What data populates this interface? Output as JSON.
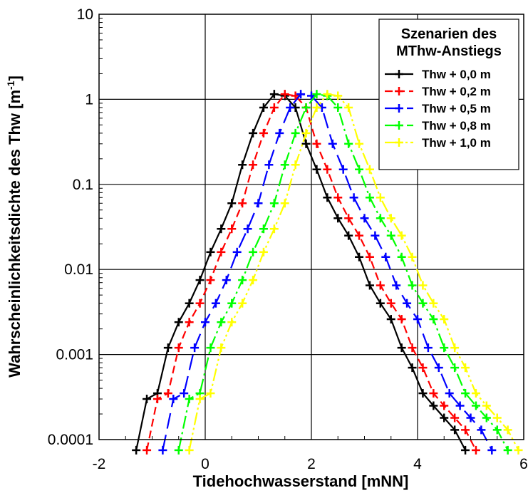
{
  "chart_data": {
    "type": "line",
    "ylog": true,
    "grid": true,
    "legend_position": "top-right",
    "xlabel": "Tidehochwasserstand  [mNN]",
    "ylabel": "Wahrscheinlichkeitsdichte des Thw  [m",
    "ylabel_sup": "-1",
    "ylabel_end": "]",
    "xlim": [
      -2,
      6
    ],
    "ylim": [
      0.0001,
      10
    ],
    "xticks": [
      -2,
      0,
      2,
      4,
      6
    ],
    "xtick_labels": [
      "-2",
      "0",
      "2",
      "4",
      "6"
    ],
    "yticks": [
      0.0001,
      0.001,
      0.01,
      0.1,
      1,
      10
    ],
    "ytick_labels": [
      "0.0001",
      "0.001",
      "0.01",
      "0.1",
      "1",
      "10"
    ],
    "legend_title": [
      "Szenarien des",
      "MThw-Anstiegs"
    ],
    "series": [
      {
        "name": "Thw + 0,0 m",
        "color": "#000000",
        "dash": "",
        "x": [
          -1.3,
          -1.1,
          -0.9,
          -0.7,
          -0.5,
          -0.3,
          -0.1,
          0.1,
          0.3,
          0.5,
          0.7,
          0.9,
          1.1,
          1.3,
          1.5,
          1.7,
          1.9,
          2.1,
          2.3,
          2.5,
          2.7,
          2.9,
          3.1,
          3.3,
          3.5,
          3.7,
          3.9,
          4.1,
          4.3,
          4.5,
          4.7,
          4.9
        ],
        "y": [
          7.5e-05,
          0.0003,
          0.00035,
          0.0012,
          0.0024,
          0.004,
          0.0075,
          0.016,
          0.03,
          0.06,
          0.17,
          0.4,
          0.8,
          1.15,
          1.1,
          0.8,
          0.3,
          0.15,
          0.07,
          0.04,
          0.025,
          0.014,
          0.0065,
          0.004,
          0.0026,
          0.0012,
          0.0007,
          0.00035,
          0.00025,
          0.00018,
          0.00013,
          7.5e-05
        ]
      },
      {
        "name": "Thw + 0,2 m",
        "color": "#ff0000",
        "dash": "11,6",
        "x": [
          -1.1,
          -0.9,
          -0.7,
          -0.5,
          -0.3,
          -0.1,
          0.1,
          0.3,
          0.5,
          0.7,
          0.9,
          1.1,
          1.3,
          1.5,
          1.7,
          1.9,
          2.1,
          2.3,
          2.5,
          2.7,
          2.9,
          3.1,
          3.3,
          3.5,
          3.7,
          3.9,
          4.1,
          4.3,
          4.5,
          4.7,
          4.9,
          5.1
        ],
        "y": [
          7.5e-05,
          0.0003,
          0.00035,
          0.0012,
          0.0024,
          0.004,
          0.0075,
          0.016,
          0.03,
          0.06,
          0.17,
          0.4,
          0.8,
          1.15,
          1.1,
          0.8,
          0.3,
          0.15,
          0.07,
          0.04,
          0.025,
          0.014,
          0.0065,
          0.004,
          0.0026,
          0.0012,
          0.0007,
          0.00035,
          0.00025,
          0.00018,
          0.00013,
          7.5e-05
        ]
      },
      {
        "name": "Thw + 0,5 m",
        "color": "#0000ff",
        "dash": "22,9",
        "x": [
          -0.8,
          -0.6,
          -0.4,
          -0.2,
          0.0,
          0.2,
          0.4,
          0.6,
          0.8,
          1.0,
          1.2,
          1.4,
          1.6,
          1.8,
          2.0,
          2.2,
          2.4,
          2.6,
          2.8,
          3.0,
          3.2,
          3.4,
          3.6,
          3.8,
          4.0,
          4.2,
          4.4,
          4.6,
          4.8,
          5.0,
          5.2,
          5.4
        ],
        "y": [
          7.5e-05,
          0.0003,
          0.00035,
          0.0012,
          0.0024,
          0.004,
          0.0075,
          0.016,
          0.03,
          0.06,
          0.17,
          0.4,
          0.8,
          1.15,
          1.1,
          0.8,
          0.3,
          0.15,
          0.07,
          0.04,
          0.025,
          0.014,
          0.0065,
          0.004,
          0.0026,
          0.0012,
          0.0007,
          0.00035,
          0.00025,
          0.00018,
          0.00013,
          7.5e-05
        ]
      },
      {
        "name": "Thw + 0,8 m",
        "color": "#00ff00",
        "dash": "18,5,3,5",
        "x": [
          -0.5,
          -0.3,
          -0.1,
          0.1,
          0.3,
          0.5,
          0.7,
          0.9,
          1.1,
          1.3,
          1.5,
          1.7,
          1.9,
          2.1,
          2.3,
          2.5,
          2.7,
          2.9,
          3.1,
          3.3,
          3.5,
          3.7,
          3.9,
          4.1,
          4.3,
          4.5,
          4.7,
          4.9,
          5.1,
          5.3,
          5.5,
          5.7
        ],
        "y": [
          7.5e-05,
          0.0003,
          0.00035,
          0.0012,
          0.0024,
          0.004,
          0.0075,
          0.016,
          0.03,
          0.06,
          0.17,
          0.4,
          0.8,
          1.15,
          1.1,
          0.8,
          0.3,
          0.15,
          0.07,
          0.04,
          0.025,
          0.014,
          0.0065,
          0.004,
          0.0026,
          0.0012,
          0.0007,
          0.00035,
          0.00025,
          0.00018,
          0.00013,
          7.5e-05
        ]
      },
      {
        "name": "Thw + 1,0 m",
        "color": "#ffff00",
        "dash": "18,4,3,4,3,4",
        "x": [
          -0.3,
          -0.1,
          0.1,
          0.3,
          0.5,
          0.7,
          0.9,
          1.1,
          1.3,
          1.5,
          1.7,
          1.9,
          2.1,
          2.3,
          2.5,
          2.7,
          2.9,
          3.1,
          3.3,
          3.5,
          3.7,
          3.9,
          4.1,
          4.3,
          4.5,
          4.7,
          4.9,
          5.1,
          5.3,
          5.5,
          5.7,
          5.9
        ],
        "y": [
          7.5e-05,
          0.0003,
          0.00035,
          0.0012,
          0.0024,
          0.004,
          0.0075,
          0.016,
          0.03,
          0.06,
          0.17,
          0.4,
          0.8,
          1.15,
          1.1,
          0.8,
          0.3,
          0.15,
          0.07,
          0.04,
          0.025,
          0.014,
          0.0065,
          0.004,
          0.0026,
          0.0012,
          0.0007,
          0.00035,
          0.00025,
          0.00018,
          0.00013,
          7.5e-05
        ]
      }
    ]
  }
}
